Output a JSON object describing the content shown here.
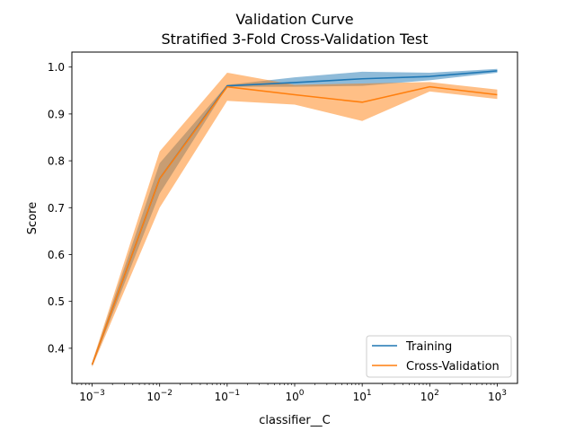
{
  "chart_data": {
    "type": "line",
    "title": "Validation Curve",
    "subtitle": "Stratified 3-Fold Cross-Validation Test",
    "xlabel": "classifier__C",
    "ylabel": "Score",
    "xscale": "log",
    "x": [
      0.001,
      0.01,
      0.1,
      1,
      10,
      100,
      1000
    ],
    "xlim_exp": [
      -3.3,
      3.3
    ],
    "ylim": [
      0.325,
      1.032
    ],
    "xticks": [
      {
        "exp": -3,
        "base": "10",
        "power": "−3"
      },
      {
        "exp": -2,
        "base": "10",
        "power": "−2"
      },
      {
        "exp": -1,
        "base": "10",
        "power": "−1"
      },
      {
        "exp": 0,
        "base": "10",
        "power": "0"
      },
      {
        "exp": 1,
        "base": "10",
        "power": "1"
      },
      {
        "exp": 2,
        "base": "10",
        "power": "2"
      },
      {
        "exp": 3,
        "base": "10",
        "power": "3"
      }
    ],
    "yticks": [
      {
        "v": 0.4,
        "label": "0.4"
      },
      {
        "v": 0.5,
        "label": "0.5"
      },
      {
        "v": 0.6,
        "label": "0.6"
      },
      {
        "v": 0.7,
        "label": "0.7"
      },
      {
        "v": 0.8,
        "label": "0.8"
      },
      {
        "v": 0.9,
        "label": "0.9"
      },
      {
        "v": 1.0,
        "label": "1.0"
      }
    ],
    "series": [
      {
        "name": "Training",
        "color": "#1f77b4",
        "values": [
          0.365,
          0.762,
          0.96,
          0.967,
          0.975,
          0.98,
          0.992
        ],
        "lower": [
          0.362,
          0.73,
          0.958,
          0.958,
          0.96,
          0.972,
          0.988
        ],
        "upper": [
          0.368,
          0.795,
          0.962,
          0.978,
          0.99,
          0.988,
          0.996
        ]
      },
      {
        "name": "Cross-Validation",
        "color": "#ff7f0e",
        "values": [
          0.365,
          0.762,
          0.958,
          0.941,
          0.925,
          0.958,
          0.941
        ],
        "lower": [
          0.36,
          0.7,
          0.928,
          0.92,
          0.885,
          0.948,
          0.932
        ],
        "upper": [
          0.37,
          0.82,
          0.988,
          0.962,
          0.965,
          0.968,
          0.952
        ]
      }
    ],
    "legend_position": "lower-right"
  }
}
